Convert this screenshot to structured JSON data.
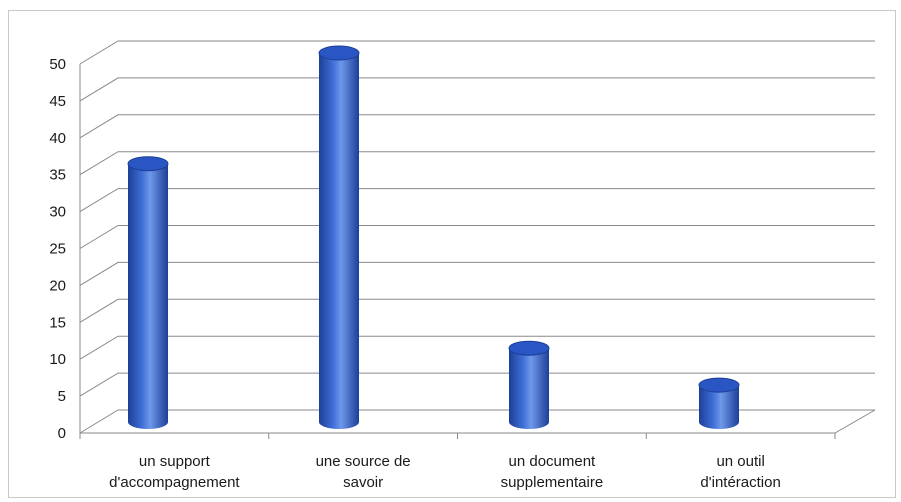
{
  "chart_data": {
    "type": "bar",
    "style": "3d-cylinder",
    "categories": [
      [
        "un support",
        "d'accompagnement"
      ],
      [
        "une source de",
        "savoir"
      ],
      [
        "un document",
        "supplementaire"
      ],
      [
        "un outil",
        "d'intéraction"
      ]
    ],
    "values": [
      35,
      50,
      10,
      5
    ],
    "yticks": [
      "0",
      "5",
      "10",
      "15",
      "20",
      "25",
      "30",
      "35",
      "40",
      "45",
      "50"
    ],
    "ylim": [
      0,
      50
    ],
    "ystep": 5,
    "grid": true,
    "legend": "none",
    "colors": {
      "bar_dark": "#1c3f98",
      "bar_mid": "#3f6fd6",
      "bar_light": "#6f98ea",
      "bar_top": "#2a56c4",
      "grid": "#8a8a8a",
      "axis_text": "#1a1a1a"
    }
  }
}
